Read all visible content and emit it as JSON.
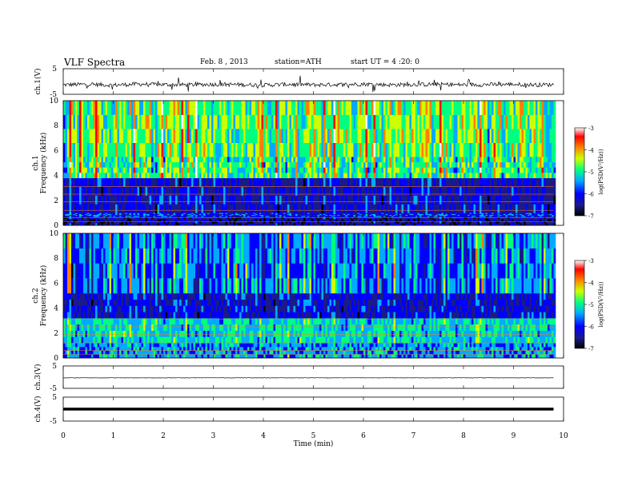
{
  "header": {
    "title": "VLF Spectra",
    "date": "Feb. 8 , 2013",
    "station": "station=ATH",
    "start": "start UT = 4 :20: 0"
  },
  "colors": {
    "colormap": [
      "#000000",
      "#1a1a8c",
      "#0000ff",
      "#00aaff",
      "#00ff80",
      "#ccff00",
      "#ff8000",
      "#ff0000",
      "#ffffff"
    ],
    "trace": "#000000"
  },
  "chart_data": [
    {
      "type": "line",
      "panel": "ch1",
      "ylabel": "ch.1(V)",
      "ylim": [
        -5,
        5
      ],
      "yticks": [
        -5,
        5
      ],
      "x": [
        0,
        0.5,
        1,
        1.5,
        2,
        2.5,
        3,
        3.5,
        4,
        4.5,
        5,
        5.5,
        6,
        6.5,
        7,
        7.5,
        8,
        8.5,
        9,
        9.5,
        9.8
      ],
      "values": [
        -1.3,
        -1.1,
        -1.4,
        -1.0,
        -1.2,
        -1.3,
        -1.1,
        -1.2,
        -1.4,
        -1.1,
        -1.3,
        -1.2,
        -1.0,
        -1.3,
        -1.2,
        -1.1,
        -1.3,
        -1.2,
        -1.1,
        -1.3,
        -1.2
      ],
      "xlim": [
        0,
        10
      ]
    },
    {
      "type": "heatmap",
      "panel": "ch1-spectrogram",
      "ylabel": "ch.1 Frequency (kHz)",
      "ylim": [
        0,
        10
      ],
      "yticks": [
        0,
        2,
        4,
        6,
        8,
        10
      ],
      "xlim": [
        0,
        10
      ],
      "data_end_min": 9.8,
      "colorbar": {
        "label": "log(PSD(V²/Hz))",
        "range": [
          -7,
          -3
        ],
        "ticks": [
          "-3",
          "-4",
          "-5",
          "-6",
          "-7"
        ]
      },
      "bands_khz": [
        {
          "from": 0,
          "to": 0.7,
          "level": -6.5
        },
        {
          "from": 0.7,
          "to": 1.0,
          "level": -6.0
        },
        {
          "from": 1.0,
          "to": 3.8,
          "level": -6.2
        },
        {
          "from": 3.8,
          "to": 5.5,
          "level": -5.0
        },
        {
          "from": 5.5,
          "to": 10,
          "level": -4.8
        }
      ]
    },
    {
      "type": "heatmap",
      "panel": "ch2-spectrogram",
      "ylabel": "ch.2 Frequency (kHz)",
      "ylim": [
        0,
        10
      ],
      "yticks": [
        0,
        2,
        4,
        6,
        8,
        10
      ],
      "xlim": [
        0,
        10
      ],
      "data_end_min": 9.8,
      "colorbar": {
        "label": "log(PSD(V²/Hz))",
        "range": [
          -7,
          -3
        ],
        "ticks": [
          "-3",
          "-4",
          "-5",
          "-6",
          "-7"
        ]
      },
      "bands_khz": [
        {
          "from": 0,
          "to": 1.2,
          "level": -5.6
        },
        {
          "from": 1.2,
          "to": 3.2,
          "level": -5.3
        },
        {
          "from": 3.2,
          "to": 5.2,
          "level": -6.2
        },
        {
          "from": 5.2,
          "to": 10,
          "level": -5.7
        }
      ]
    },
    {
      "type": "line",
      "panel": "ch3",
      "ylabel": "ch.3(V)",
      "ylim": [
        -5,
        5
      ],
      "yticks": [
        -5,
        5
      ],
      "x": [
        0,
        9.8
      ],
      "values": [
        -0.3,
        -0.3
      ],
      "xlim": [
        0,
        10
      ]
    },
    {
      "type": "line",
      "panel": "ch4",
      "ylabel": "ch.4(V)",
      "ylim": [
        -5,
        5
      ],
      "yticks": [
        -5,
        5
      ],
      "x": [
        0,
        9.8
      ],
      "values": [
        0,
        0
      ],
      "xlim": [
        0,
        10
      ]
    }
  ],
  "xaxis": {
    "label": "Time (min)",
    "ticks": [
      "0",
      "1",
      "2",
      "3",
      "4",
      "5",
      "6",
      "7",
      "8",
      "9",
      "10"
    ]
  }
}
